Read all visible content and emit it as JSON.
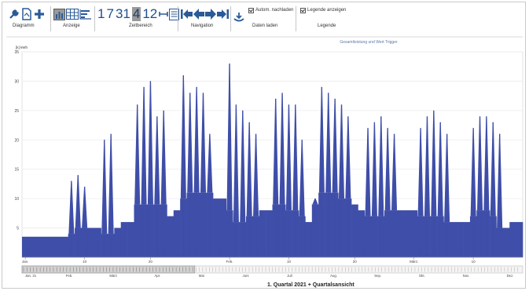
{
  "toolbar": {
    "groups": [
      {
        "label": "Diagramm",
        "icons": [
          "wrench-icon",
          "document-icon",
          "plus-icon"
        ]
      },
      {
        "label": "Anzeige",
        "icons": [
          "chart-view-icon",
          "table-view-icon",
          "sorted-bars-icon"
        ]
      },
      {
        "label": "Zeitbereich",
        "numbers": [
          "1",
          "7",
          "31",
          "4",
          "12"
        ],
        "selected": "4",
        "icons": [
          "range-span-icon",
          "calendar-list-icon"
        ]
      },
      {
        "label": "Navigation",
        "icons": [
          "nav-first-icon",
          "nav-prev-icon",
          "nav-next-icon",
          "nav-last-icon"
        ]
      },
      {
        "label": "Daten laden",
        "checkbox": "Autom. nachladen",
        "icons": [
          "download-icon"
        ]
      },
      {
        "label": "Legende",
        "checkbox": "Legende anzeigen"
      }
    ]
  },
  "chart_data": {
    "type": "bar",
    "title": "",
    "annotation": "Gesamtleistung und Wert Trigger",
    "ylabel": "[k] kWh",
    "ylim": [
      0,
      35
    ],
    "yticks": [
      5,
      10,
      15,
      20,
      25,
      30,
      35
    ],
    "grid": true,
    "series_color": "#3f4ea8",
    "x_tick_labels": [
      "Jan.",
      "10",
      "20",
      "Feb.",
      "10",
      "20",
      "März.",
      "10"
    ],
    "x": [
      "2021-01-01",
      "2021-01-02",
      "2021-01-03",
      "2021-01-04",
      "2021-01-05",
      "2021-01-06",
      "2021-01-07",
      "2021-01-08",
      "2021-01-09",
      "2021-01-10",
      "2021-01-11",
      "2021-01-12",
      "2021-01-13",
      "2021-01-14",
      "2021-01-15",
      "2021-01-16",
      "2021-01-17",
      "2021-01-18",
      "2021-01-19",
      "2021-01-20",
      "2021-01-21",
      "2021-01-22",
      "2021-01-23",
      "2021-01-24",
      "2021-01-25",
      "2021-01-26",
      "2021-01-27",
      "2021-01-28",
      "2021-01-29",
      "2021-01-30",
      "2021-01-31",
      "2021-02-01",
      "2021-02-02",
      "2021-02-03",
      "2021-02-04",
      "2021-02-05",
      "2021-02-06",
      "2021-02-07",
      "2021-02-08",
      "2021-02-09",
      "2021-02-10",
      "2021-02-11",
      "2021-02-12",
      "2021-02-13",
      "2021-02-14",
      "2021-02-15",
      "2021-02-16",
      "2021-02-17",
      "2021-02-18",
      "2021-02-19",
      "2021-02-20",
      "2021-02-21",
      "2021-02-22",
      "2021-02-23",
      "2021-02-24",
      "2021-02-25",
      "2021-02-26",
      "2021-02-27",
      "2021-02-28",
      "2021-03-01",
      "2021-03-02",
      "2021-03-03",
      "2021-03-04",
      "2021-03-05",
      "2021-03-06",
      "2021-03-07",
      "2021-03-08",
      "2021-03-09",
      "2021-03-10",
      "2021-03-11",
      "2021-03-12",
      "2021-03-13",
      "2021-03-14",
      "2021-03-15",
      "2021-03-16",
      "2021-03-17"
    ],
    "base": [
      3.5,
      3.5,
      3.5,
      3.5,
      3.5,
      3.5,
      3.5,
      4,
      5,
      5,
      5,
      5,
      4,
      4,
      5,
      6,
      6,
      9,
      9,
      9,
      9,
      9,
      7,
      8,
      10,
      11,
      11,
      11,
      11,
      10,
      10,
      8,
      6,
      6,
      7,
      7,
      8,
      8,
      9,
      9,
      8,
      8,
      7,
      6,
      9,
      11,
      11,
      11,
      10,
      10,
      9,
      8,
      7,
      7,
      7,
      8,
      8,
      8,
      8,
      8,
      7,
      7,
      7,
      7,
      6,
      6,
      6,
      6,
      7,
      8,
      8,
      7,
      5,
      5,
      6,
      6
    ],
    "peaks": [
      3.5,
      3.5,
      3.5,
      3.5,
      3.5,
      3.5,
      3.5,
      13,
      14,
      12,
      5,
      5,
      20,
      21,
      5,
      6,
      6,
      26,
      29,
      30,
      24,
      25,
      7,
      8,
      31,
      28,
      29,
      28,
      21,
      10,
      10,
      33,
      26,
      25,
      23,
      21,
      8,
      8,
      27,
      28,
      26,
      26,
      20,
      6,
      10,
      29,
      28,
      27,
      26,
      24,
      9,
      8,
      22,
      23,
      24,
      22,
      21,
      8,
      8,
      8,
      22,
      24,
      25,
      23,
      21,
      6,
      6,
      6,
      22,
      24,
      24,
      23,
      21,
      5,
      6,
      6
    ]
  },
  "x_axis_labels": [
    "Jan.",
    "10",
    "20",
    "Feb.",
    "10",
    "20",
    "März.",
    "10"
  ],
  "navigator": {
    "labels": [
      "Jan. 21",
      "Feb.",
      "März",
      "Apr.",
      "Mai",
      "Juni",
      "Juli",
      "Aug.",
      "Sep.",
      "Okt.",
      "Nov.",
      "Dez."
    ],
    "period_label": "1. Quartal 2021 + Quartalsansicht"
  }
}
